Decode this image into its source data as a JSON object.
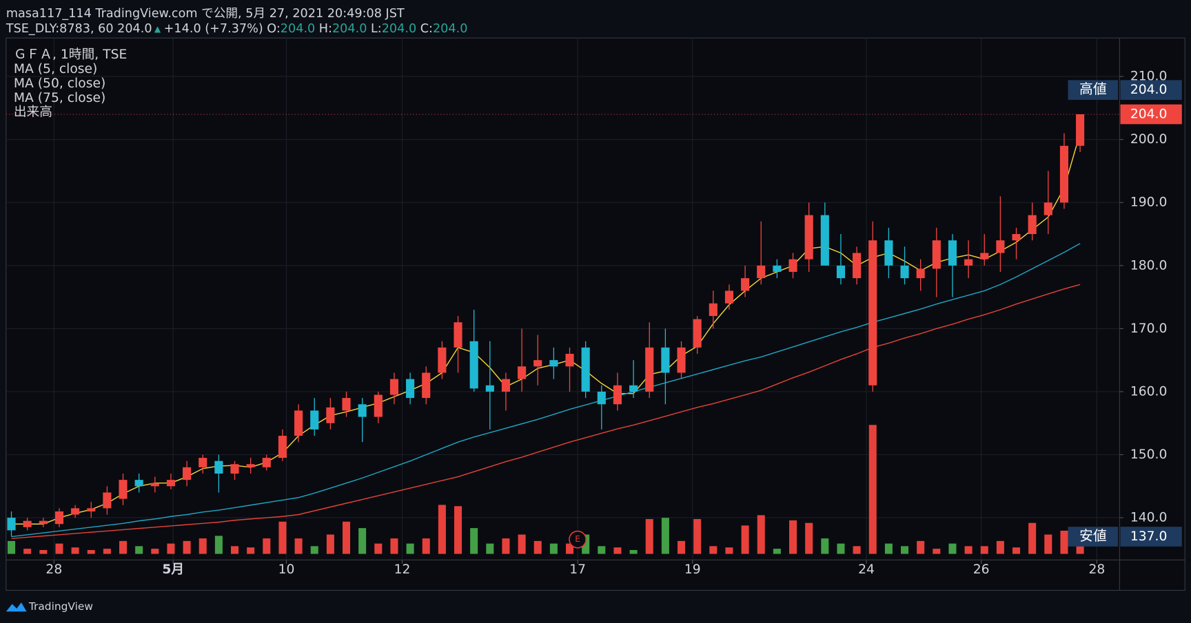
{
  "header": {
    "line1": "masa117_114 TradingView.com で公開, 5月 27, 2021 20:49:08 JST",
    "symbol": "TSE_DLY:8783, 60",
    "last": "204.0",
    "change": "+14.0 (+7.37%)",
    "o_label": "O:",
    "o": "204.0",
    "h_label": "H:",
    "h": "204.0",
    "l_label": "L:",
    "l": "204.0",
    "c_label": "C:",
    "c": "204.0"
  },
  "legend": [
    "ＧＦＡ, 1時間, TSE",
    "MA (5, close)",
    "MA (50, close)",
    "MA (75, close)",
    "出来高"
  ],
  "footer": "TradingView",
  "chart_data": {
    "type": "candlestick",
    "up_color": "#f0453f",
    "down_color": "#1fb8d3",
    "vol_up_color": "#e8413c",
    "vol_down_color": "#43a047",
    "ylim": [
      133.3,
      216.1
    ],
    "yticks": [
      {
        "value": 140,
        "label": "140.0"
      },
      {
        "value": 150,
        "label": "150.0"
      },
      {
        "value": 160,
        "label": "160.0"
      },
      {
        "value": 170,
        "label": "170.0"
      },
      {
        "value": 180,
        "label": "180.0"
      },
      {
        "value": 190,
        "label": "190.0"
      },
      {
        "value": 200,
        "label": "200.0"
      },
      {
        "value": 210,
        "label": "210.0"
      }
    ],
    "xticks": [
      {
        "value": 2.67,
        "label": "28"
      },
      {
        "value": 10.14,
        "label": "5月"
      },
      {
        "value": 17.24,
        "label": "10"
      },
      {
        "value": 24.5,
        "label": "12"
      },
      {
        "value": 35.5,
        "label": "17"
      },
      {
        "value": 42.7,
        "label": "19"
      },
      {
        "value": 53.6,
        "label": "24"
      },
      {
        "value": 60.8,
        "label": "26"
      },
      {
        "value": 68.05,
        "label": "28"
      }
    ],
    "grid": true,
    "open": [
      140,
      138.5,
      139,
      139,
      140.5,
      141,
      141.5,
      143,
      146,
      145,
      145,
      146,
      148,
      149,
      147,
      148,
      148,
      149.5,
      153,
      157,
      155,
      157,
      158,
      156,
      159.5,
      162,
      159,
      163,
      167,
      168,
      161,
      160,
      162,
      164,
      165,
      164,
      167,
      160,
      158,
      161,
      160,
      167,
      163,
      167,
      172,
      174,
      176,
      178,
      180,
      179,
      181,
      188,
      180,
      178,
      161,
      184,
      180,
      178,
      179.5,
      184,
      180,
      181,
      182,
      184,
      185,
      188,
      190,
      199
    ],
    "high": [
      141,
      140,
      140,
      141.5,
      142,
      142.5,
      145,
      147,
      147,
      146.5,
      147,
      149,
      150,
      150,
      149,
      149.5,
      150,
      154,
      158,
      159,
      159,
      160,
      159,
      160,
      163,
      163,
      164,
      168,
      172,
      173,
      168,
      163,
      170,
      169,
      167,
      167,
      168,
      161,
      163,
      165,
      171,
      170,
      168,
      172,
      176,
      177,
      180,
      187,
      181,
      182,
      190,
      190,
      185,
      183,
      187,
      186,
      183,
      181,
      186,
      185,
      184,
      185,
      191,
      186,
      190,
      195,
      201,
      204
    ],
    "low": [
      137,
      138,
      138.5,
      138.5,
      140,
      140,
      140.5,
      142,
      144,
      144,
      144.5,
      145,
      147,
      144,
      146,
      147,
      147.5,
      149,
      152,
      153,
      154,
      156,
      152,
      155,
      158,
      158,
      158,
      162,
      163,
      160,
      154,
      157,
      160,
      161,
      162,
      160,
      159,
      154,
      157,
      159,
      159,
      158,
      162,
      166,
      170,
      173,
      175,
      177,
      178,
      178,
      179,
      180,
      177,
      177,
      160,
      178,
      177,
      176,
      175,
      175,
      178,
      180,
      179,
      181,
      184,
      185,
      189,
      198
    ],
    "close": [
      138,
      139.5,
      139.5,
      141,
      141.5,
      141.5,
      144,
      146,
      145,
      145.5,
      146,
      148,
      149.5,
      147,
      148.5,
      148.5,
      149.5,
      153,
      157,
      154,
      157.5,
      159,
      156,
      159.5,
      162,
      159,
      163,
      167,
      171,
      160.5,
      160,
      162,
      164,
      165,
      164,
      166,
      160,
      158,
      161,
      160,
      167,
      163,
      167,
      171.5,
      174,
      176,
      178,
      180,
      179,
      181,
      188,
      180,
      178,
      182,
      184,
      180,
      178,
      179.5,
      184,
      180,
      181,
      182,
      184,
      185,
      188,
      190,
      199,
      204
    ],
    "volume": [
      10,
      4,
      3,
      8,
      5,
      3,
      4,
      10,
      6,
      4,
      8,
      10,
      12,
      14,
      6,
      5,
      12,
      25,
      12,
      6,
      15,
      25,
      20,
      8,
      12,
      8,
      12,
      38,
      37,
      20,
      8,
      12,
      15,
      10,
      8,
      8,
      15,
      6,
      5,
      3,
      27,
      28,
      10,
      27,
      6,
      5,
      22,
      30,
      4,
      26,
      24,
      12,
      8,
      6,
      100,
      8,
      6,
      10,
      4,
      8,
      6,
      6,
      10,
      5,
      24,
      15,
      18,
      6
    ],
    "vlim": [
      0,
      100
    ],
    "series": [
      {
        "name": "MA (5, close)",
        "color": "#f5d33b",
        "values": [
          139,
          139,
          139,
          140,
          140.7,
          141.3,
          142.3,
          143.8,
          145,
          145.5,
          145.5,
          146.5,
          147.8,
          148.2,
          148.3,
          148,
          148.8,
          150.3,
          153,
          154.7,
          156.2,
          156.8,
          157.5,
          158.2,
          159.2,
          160.2,
          161.3,
          163,
          167,
          166.2,
          163.8,
          160.8,
          162,
          163.7,
          164.3,
          165,
          163.3,
          161.3,
          159.7,
          159.7,
          162.7,
          163.3,
          165.7,
          167.2,
          170.8,
          173.8,
          176,
          178,
          179,
          180,
          182.7,
          183,
          182,
          180,
          181.3,
          182,
          180.7,
          179.2,
          180.5,
          181.2,
          181.7,
          181,
          182.3,
          183.7,
          185.7,
          187.7,
          192.3,
          201
        ]
      },
      {
        "name": "MA (50, close)",
        "color": "#1fa6c4",
        "values": [
          137,
          137.3,
          137.6,
          137.9,
          138.2,
          138.5,
          138.8,
          139.1,
          139.5,
          139.8,
          140.2,
          140.5,
          140.9,
          141.2,
          141.6,
          142,
          142.4,
          142.8,
          143.2,
          143.9,
          144.7,
          145.5,
          146.3,
          147.2,
          148.1,
          149,
          150,
          151,
          152,
          152.8,
          153.5,
          154.2,
          154.9,
          155.6,
          156.4,
          157.2,
          157.9,
          158.6,
          159.3,
          160,
          160.7,
          161.4,
          162.1,
          162.8,
          163.5,
          164.2,
          164.9,
          165.5,
          166.3,
          167.1,
          167.9,
          168.7,
          169.5,
          170.2,
          171,
          171.7,
          172.4,
          173.1,
          173.9,
          174.6,
          175.3,
          176,
          177,
          178.2,
          179.5,
          180.8,
          182.1,
          183.5
        ]
      },
      {
        "name": "MA (75, close)",
        "color": "#e4433a",
        "values": [
          136.7,
          136.9,
          137.1,
          137.3,
          137.5,
          137.7,
          137.9,
          138.1,
          138.3,
          138.5,
          138.7,
          138.9,
          139.1,
          139.3,
          139.6,
          139.8,
          140,
          140.2,
          140.5,
          141.1,
          141.7,
          142.3,
          142.9,
          143.5,
          144.1,
          144.7,
          145.3,
          145.9,
          146.5,
          147.3,
          148.1,
          148.9,
          149.6,
          150.4,
          151.2,
          152,
          152.7,
          153.4,
          154.1,
          154.7,
          155.4,
          156.1,
          156.8,
          157.5,
          158.1,
          158.8,
          159.5,
          160.2,
          161.2,
          162.2,
          163.1,
          164.1,
          165.1,
          166,
          167,
          167.7,
          168.5,
          169.2,
          170,
          170.7,
          171.5,
          172.2,
          173,
          173.9,
          174.7,
          175.5,
          176.3,
          177
        ]
      }
    ],
    "price_line": {
      "value": 204,
      "label": "204.0"
    },
    "high_label": {
      "name": "高値",
      "value": 204,
      "label": "204.0"
    },
    "low_label": {
      "name": "安値",
      "value": 137,
      "label": "137.0"
    },
    "event": {
      "index": 35.5,
      "label": "E"
    }
  }
}
